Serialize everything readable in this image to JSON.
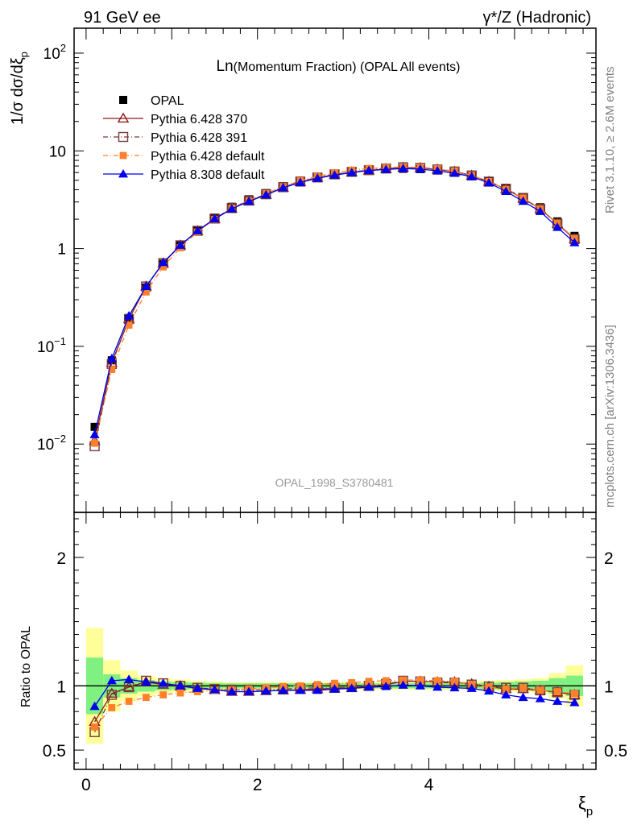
{
  "header": {
    "left": "91 GeV ee",
    "right": "γ*/Z (Hadronic)"
  },
  "side_text": {
    "rivet": "Rivet 3.1.10, ≥ 2.6M events",
    "mcplots": "mcplots.cern.ch [arXiv:1306.3436]"
  },
  "chart_data": [
    {
      "type": "scatter",
      "panel": "main",
      "title_prefix": "Ln",
      "title_rest": "(Momentum Fraction) (OPAL All events)",
      "watermark": "OPAL_1998_S3780481",
      "ylabel": "1/σ dσ/dξ_p",
      "yscale": "log",
      "ylim": [
        0.002,
        180
      ],
      "xlim": [
        -0.14,
        5.95
      ],
      "ytick_labels": [
        "10^-2",
        "10^-1",
        "1",
        "10",
        "10^2"
      ],
      "legend_position": "top-left",
      "x": [
        0.1,
        0.3,
        0.5,
        0.7,
        0.9,
        1.1,
        1.3,
        1.5,
        1.7,
        1.9,
        2.1,
        2.3,
        2.5,
        2.7,
        2.9,
        3.1,
        3.3,
        3.5,
        3.7,
        3.9,
        4.1,
        4.3,
        4.5,
        4.7,
        4.9,
        5.1,
        5.3,
        5.5,
        5.7
      ],
      "series": [
        {
          "name": "OPAL",
          "color": "#000000",
          "marker": "square-filled",
          "line": "none",
          "values": [
            0.015,
            0.072,
            0.195,
            0.4,
            0.7,
            1.08,
            1.55,
            2.08,
            2.68,
            3.2,
            3.7,
            4.35,
            4.95,
            5.45,
            5.85,
            6.15,
            6.35,
            6.5,
            6.55,
            6.5,
            6.3,
            6.0,
            5.55,
            4.9,
            4.15,
            3.35,
            2.65,
            1.9,
            1.35
          ]
        },
        {
          "name": "Pythia 6.428 370",
          "color": "#8b1a1a",
          "marker": "triangle-open",
          "line": "solid",
          "values": [
            0.0108,
            0.068,
            0.19,
            0.41,
            0.71,
            1.08,
            1.51,
            2.0,
            2.56,
            3.05,
            3.55,
            4.2,
            4.8,
            5.3,
            5.7,
            6.05,
            6.3,
            6.55,
            6.75,
            6.7,
            6.45,
            6.15,
            5.6,
            4.85,
            4.05,
            3.25,
            2.55,
            1.8,
            1.25
          ]
        },
        {
          "name": "Pythia 6.428 391",
          "color": "#7a3b3b",
          "marker": "square-open",
          "line": "dashdot",
          "values": [
            0.0095,
            0.066,
            0.19,
            0.41,
            0.71,
            1.08,
            1.52,
            2.03,
            2.6,
            3.1,
            3.6,
            4.25,
            4.85,
            5.35,
            5.75,
            6.1,
            6.35,
            6.6,
            6.8,
            6.7,
            6.45,
            6.15,
            5.6,
            4.85,
            4.1,
            3.3,
            2.55,
            1.8,
            1.25
          ]
        },
        {
          "name": "Pythia 6.428 default",
          "color": "#ff7f2a",
          "marker": "square-filled-small",
          "line": "dashdot",
          "values": [
            0.0102,
            0.058,
            0.165,
            0.36,
            0.65,
            1.02,
            1.48,
            2.0,
            2.6,
            3.1,
            3.65,
            4.3,
            4.95,
            5.5,
            5.95,
            6.35,
            6.6,
            6.75,
            6.85,
            6.8,
            6.55,
            6.2,
            5.6,
            4.85,
            4.05,
            3.3,
            2.55,
            1.82,
            1.27
          ]
        },
        {
          "name": "Pythia 8.308 default",
          "color": "#0000ee",
          "marker": "triangle-filled",
          "line": "solid",
          "values": [
            0.0125,
            0.075,
            0.205,
            0.41,
            0.72,
            1.08,
            1.52,
            2.02,
            2.55,
            3.05,
            3.55,
            4.2,
            4.75,
            5.25,
            5.65,
            6.0,
            6.3,
            6.45,
            6.6,
            6.5,
            6.25,
            5.9,
            5.45,
            4.7,
            3.85,
            3.05,
            2.4,
            1.65,
            1.15
          ]
        }
      ]
    },
    {
      "type": "scatter",
      "panel": "ratio",
      "ylabel": "Ratio to OPAL",
      "xlabel": "ξ_p",
      "ylim": [
        0.35,
        2.35
      ],
      "xlim": [
        -0.14,
        5.95
      ],
      "ytick_labels": [
        "0.5",
        "1",
        "2"
      ],
      "xtick_labels": [
        "0",
        "2",
        "4"
      ],
      "xticks": [
        0,
        2,
        4
      ],
      "uncertainty_bands": {
        "x": [
          0.1,
          0.3,
          0.5,
          0.7,
          0.9,
          1.1,
          1.3,
          1.5,
          1.7,
          1.9,
          2.1,
          2.3,
          2.5,
          2.7,
          2.9,
          3.1,
          3.3,
          3.5,
          3.7,
          3.9,
          4.1,
          4.3,
          4.5,
          4.7,
          4.9,
          5.1,
          5.3,
          5.5,
          5.7
        ],
        "stat_halfwidth": [
          0.22,
          0.09,
          0.06,
          0.045,
          0.035,
          0.03,
          0.025,
          0.022,
          0.02,
          0.02,
          0.02,
          0.02,
          0.02,
          0.02,
          0.02,
          0.02,
          0.02,
          0.02,
          0.02,
          0.02,
          0.02,
          0.02,
          0.02,
          0.025,
          0.03,
          0.035,
          0.04,
          0.06,
          0.08
        ],
        "total_halfwidth": [
          0.45,
          0.2,
          0.12,
          0.08,
          0.06,
          0.05,
          0.04,
          0.035,
          0.03,
          0.03,
          0.03,
          0.03,
          0.03,
          0.03,
          0.03,
          0.03,
          0.03,
          0.03,
          0.03,
          0.03,
          0.03,
          0.03,
          0.035,
          0.04,
          0.045,
          0.05,
          0.06,
          0.1,
          0.16
        ]
      },
      "x": [
        0.1,
        0.3,
        0.5,
        0.7,
        0.9,
        1.1,
        1.3,
        1.5,
        1.7,
        1.9,
        2.1,
        2.3,
        2.5,
        2.7,
        2.9,
        3.1,
        3.3,
        3.5,
        3.7,
        3.9,
        4.1,
        4.3,
        4.5,
        4.7,
        4.9,
        5.1,
        5.3,
        5.5,
        5.7
      ],
      "series": [
        {
          "name": "Pythia 6.428 370",
          "color": "#8b1a1a",
          "marker": "triangle-open",
          "line": "solid",
          "values": [
            0.72,
            0.94,
            0.99,
            1.03,
            1.01,
            1.0,
            0.98,
            0.97,
            0.955,
            0.955,
            0.96,
            0.965,
            0.97,
            0.975,
            0.98,
            0.985,
            0.995,
            1.01,
            1.035,
            1.035,
            1.03,
            1.03,
            1.015,
            0.995,
            0.975,
            0.975,
            0.965,
            0.95,
            0.93
          ]
        },
        {
          "name": "Pythia 6.428 391",
          "color": "#7a3b3b",
          "marker": "square-open",
          "line": "dashdot",
          "values": [
            0.64,
            0.93,
            0.99,
            1.04,
            1.02,
            1.0,
            0.985,
            0.975,
            0.97,
            0.97,
            0.97,
            0.975,
            0.98,
            0.985,
            0.985,
            0.99,
            1.0,
            1.015,
            1.04,
            1.035,
            1.025,
            1.025,
            1.01,
            0.995,
            0.985,
            0.985,
            0.965,
            0.95,
            0.93
          ]
        },
        {
          "name": "Pythia 6.428 default",
          "color": "#ff7f2a",
          "marker": "square-filled-small",
          "line": "dashdot",
          "values": [
            0.68,
            0.83,
            0.88,
            0.91,
            0.93,
            0.945,
            0.955,
            0.965,
            0.97,
            0.975,
            0.985,
            0.995,
            1.0,
            1.01,
            1.02,
            1.025,
            1.035,
            1.04,
            1.045,
            1.045,
            1.04,
            1.035,
            1.01,
            0.99,
            0.975,
            0.985,
            0.965,
            0.955,
            0.94
          ]
        },
        {
          "name": "Pythia 8.308 default",
          "color": "#0000ee",
          "marker": "triangle-filled",
          "line": "solid",
          "values": [
            0.84,
            1.04,
            1.05,
            1.03,
            1.02,
            1.0,
            0.98,
            0.97,
            0.955,
            0.955,
            0.96,
            0.965,
            0.965,
            0.965,
            0.975,
            0.98,
            0.99,
            0.995,
            1.005,
            1.0,
            0.99,
            0.985,
            0.98,
            0.96,
            0.93,
            0.91,
            0.9,
            0.88,
            0.87
          ]
        }
      ]
    }
  ]
}
